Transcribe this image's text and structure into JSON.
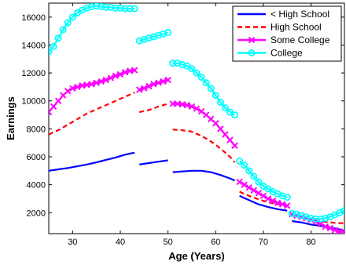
{
  "chart_data": {
    "type": "line",
    "xlabel": "Age (Years)",
    "ylabel": "Earnings",
    "xlim": [
      25,
      87
    ],
    "ylim": [
      500,
      17000
    ],
    "xticks": [
      30,
      40,
      50,
      60,
      70,
      80
    ],
    "yticks": [
      2000,
      4000,
      6000,
      8000,
      10000,
      12000,
      14000,
      16000
    ],
    "xtick_labels": [
      "30",
      "40",
      "50",
      "60",
      "70",
      "80"
    ],
    "ytick_labels": [
      "2000",
      "4000",
      "6000",
      "8000",
      "10000",
      "12000",
      "14000",
      "16000"
    ],
    "grid": false,
    "legend_position": "top-right",
    "series": [
      {
        "name": "< High School",
        "color": "#0000ff",
        "dash": "solid",
        "marker": "none",
        "segments": [
          {
            "x": [
              25,
              27,
              29,
              31,
              33,
              35,
              37,
              39,
              41,
              43
            ],
            "y": [
              5000,
              5100,
              5200,
              5320,
              5450,
              5600,
              5780,
              5950,
              6150,
              6300
            ]
          },
          {
            "x": [
              44,
              46,
              48,
              50
            ],
            "y": [
              5450,
              5550,
              5650,
              5750
            ]
          },
          {
            "x": [
              51,
              53,
              55,
              57,
              59,
              61,
              63,
              64
            ],
            "y": [
              4900,
              4950,
              5000,
              5000,
              4900,
              4700,
              4450,
              4300
            ]
          },
          {
            "x": [
              65,
              67,
              69,
              71,
              73,
              75
            ],
            "y": [
              3200,
              2900,
              2600,
              2400,
              2250,
              2150
            ]
          },
          {
            "x": [
              76,
              78,
              80,
              82,
              84,
              86,
              87
            ],
            "y": [
              1400,
              1300,
              1150,
              1050,
              950,
              800,
              700
            ]
          }
        ]
      },
      {
        "name": "High School",
        "color": "#ff0000",
        "dash": "dashed",
        "marker": "none",
        "segments": [
          {
            "x": [
              25,
              27,
              29,
              31,
              33,
              35,
              37,
              39,
              41,
              43
            ],
            "y": [
              7600,
              7900,
              8300,
              8700,
              9100,
              9400,
              9700,
              10000,
              10300,
              10600
            ]
          },
          {
            "x": [
              44,
              46,
              48,
              50
            ],
            "y": [
              9200,
              9350,
              9600,
              9800
            ]
          },
          {
            "x": [
              51,
              53,
              55,
              57,
              59,
              61,
              63,
              64
            ],
            "y": [
              7950,
              7900,
              7800,
              7500,
              7100,
              6600,
              6000,
              5600
            ]
          },
          {
            "x": [
              65,
              67,
              69,
              71,
              73,
              75
            ],
            "y": [
              3500,
              3200,
              2950,
              2750,
              2600,
              2500
            ]
          },
          {
            "x": [
              76,
              78,
              80,
              82,
              84,
              86,
              87
            ],
            "y": [
              1800,
              1650,
              1500,
              1400,
              1300,
              1250,
              1250
            ]
          }
        ]
      },
      {
        "name": "Some College",
        "color": "#ff00ff",
        "dash": "solid",
        "marker": "x",
        "segments": [
          {
            "x": [
              25,
              26,
              27,
              28,
              29,
              30,
              31,
              32,
              33,
              34,
              35,
              36,
              37,
              38,
              39,
              40,
              41,
              42,
              43
            ],
            "y": [
              9200,
              9600,
              10000,
              10400,
              10700,
              10900,
              11000,
              11100,
              11150,
              11200,
              11300,
              11400,
              11500,
              11650,
              11800,
              11900,
              12050,
              12150,
              12200
            ]
          },
          {
            "x": [
              44,
              45,
              46,
              47,
              48,
              49,
              50
            ],
            "y": [
              10800,
              10900,
              11050,
              11200,
              11300,
              11400,
              11500
            ]
          },
          {
            "x": [
              51,
              52,
              53,
              54,
              55,
              56,
              57,
              58,
              59,
              60,
              61,
              62,
              63,
              64
            ],
            "y": [
              9800,
              9800,
              9750,
              9700,
              9600,
              9450,
              9250,
              9000,
              8700,
              8400,
              8000,
              7600,
              7200,
              6800
            ]
          },
          {
            "x": [
              65,
              66,
              67,
              68,
              69,
              70,
              71,
              72,
              73,
              74,
              75
            ],
            "y": [
              4200,
              4000,
              3800,
              3600,
              3400,
              3200,
              3000,
              2850,
              2700,
              2600,
              2500
            ]
          },
          {
            "x": [
              76,
              77,
              78,
              79,
              80,
              81,
              82,
              83,
              84,
              85,
              86,
              87
            ],
            "y": [
              1900,
              1800,
              1700,
              1600,
              1500,
              1350,
              1200,
              1000,
              900,
              750,
              650,
              600
            ]
          }
        ]
      },
      {
        "name": "College",
        "color": "#00ffff",
        "dash": "solid",
        "marker": "o",
        "segments": [
          {
            "x": [
              25,
              26,
              27,
              28,
              29,
              30,
              31,
              32,
              33,
              34,
              35,
              36,
              37,
              38,
              39,
              40,
              41,
              42,
              43
            ],
            "y": [
              13500,
              13900,
              14500,
              15100,
              15600,
              16000,
              16300,
              16500,
              16650,
              16750,
              16800,
              16750,
              16700,
              16700,
              16650,
              16650,
              16600,
              16600,
              16600
            ]
          },
          {
            "x": [
              44,
              45,
              46,
              47,
              48,
              49,
              50
            ],
            "y": [
              14300,
              14400,
              14500,
              14600,
              14700,
              14800,
              14900
            ]
          },
          {
            "x": [
              51,
              52,
              53,
              54,
              55,
              56,
              57,
              58,
              59,
              60,
              61,
              62,
              63,
              64
            ],
            "y": [
              12700,
              12700,
              12600,
              12500,
              12300,
              12000,
              11700,
              11300,
              10900,
              10400,
              9900,
              9500,
              9200,
              9000
            ]
          },
          {
            "x": [
              65,
              66,
              67,
              68,
              69,
              70,
              71,
              72,
              73,
              74,
              75
            ],
            "y": [
              5700,
              5400,
              5000,
              4600,
              4200,
              3900,
              3700,
              3500,
              3350,
              3200,
              3100
            ]
          },
          {
            "x": [
              76,
              77,
              78,
              79,
              80,
              81,
              82,
              83,
              84,
              85,
              86,
              87
            ],
            "y": [
              1950,
              1900,
              1800,
              1700,
              1600,
              1550,
              1550,
              1600,
              1700,
              1850,
              2000,
              2150
            ]
          }
        ]
      }
    ]
  }
}
